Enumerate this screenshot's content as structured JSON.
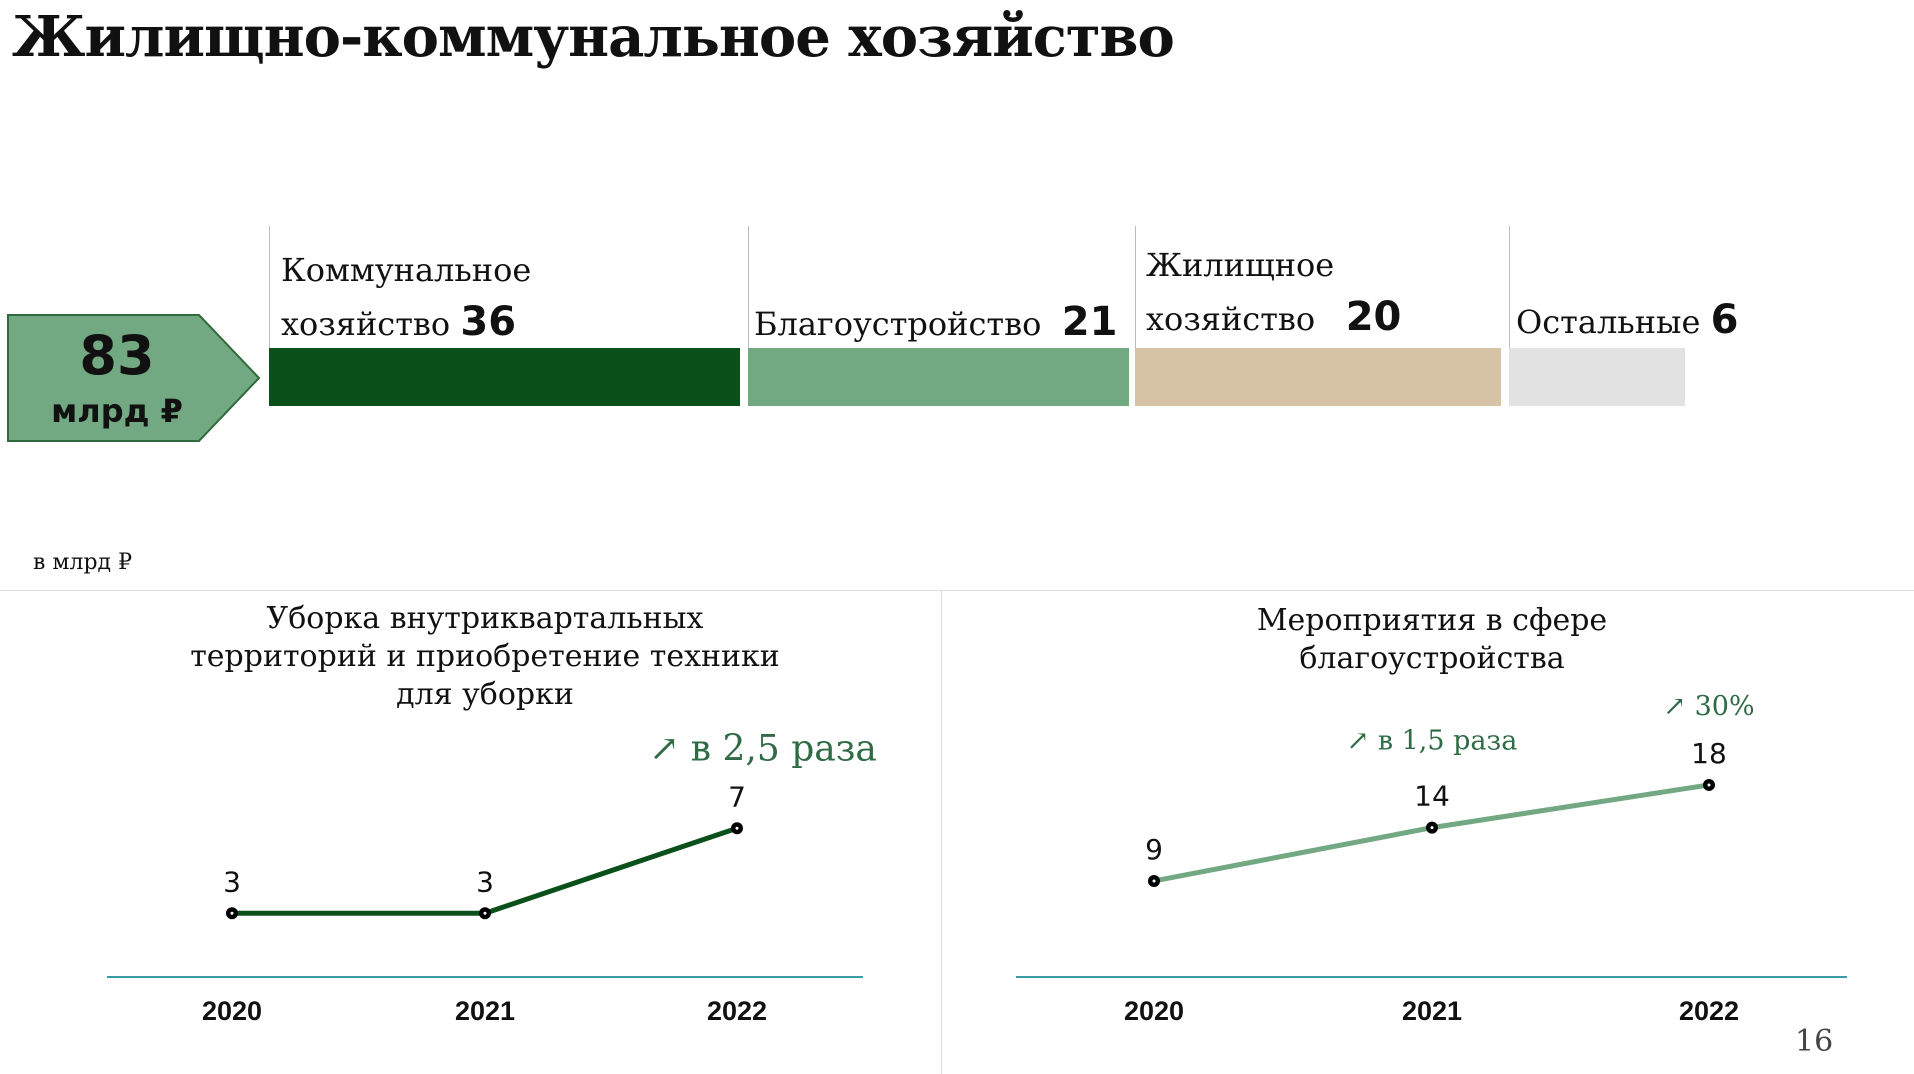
{
  "title": "Жилищно-коммунальное хозяйство",
  "total": {
    "value": "83",
    "unit": "млрд ₽"
  },
  "breakdown": [
    {
      "label_line1": "Коммунальное",
      "label_line2": "хозяйство",
      "value": "36",
      "color": "#0b4f1b"
    },
    {
      "label_line1": "",
      "label_line2": "Благоустройство",
      "value": "21",
      "color": "#72a982"
    },
    {
      "label_line1": "Жилищное",
      "label_line2": "хозяйство",
      "value": "20",
      "color": "#d6c3a6"
    },
    {
      "label_line1": "",
      "label_line2": "Остальные",
      "value": "6",
      "color": "#e2e2e2"
    }
  ],
  "unit_note": "в млрд ₽",
  "page_number": "16",
  "chart_data": [
    {
      "type": "line",
      "title_lines": [
        "Уборка внутриквартальных",
        "территорий и приобретение техники",
        "для уборки"
      ],
      "categories": [
        "2020",
        "2021",
        "2022"
      ],
      "values": [
        3,
        3,
        7
      ],
      "value_labels": [
        "3",
        "3",
        "7"
      ],
      "annotations": [
        {
          "text": "↗ в 2,5 раза",
          "at": "2022"
        }
      ],
      "color": "#0b4f1b",
      "ylim": [
        0,
        7
      ]
    },
    {
      "type": "line",
      "title_lines": [
        "Мероприятия в сфере",
        "благоустройства"
      ],
      "categories": [
        "2020",
        "2021",
        "2022"
      ],
      "values": [
        9,
        14,
        18
      ],
      "value_labels": [
        "9",
        "14",
        "18"
      ],
      "annotations": [
        {
          "text": "↗ в 1,5 раза",
          "at": "2021"
        },
        {
          "text": "↗ 30%",
          "at": "2022"
        }
      ],
      "color": "#72a982",
      "ylim": [
        0,
        18
      ]
    }
  ]
}
